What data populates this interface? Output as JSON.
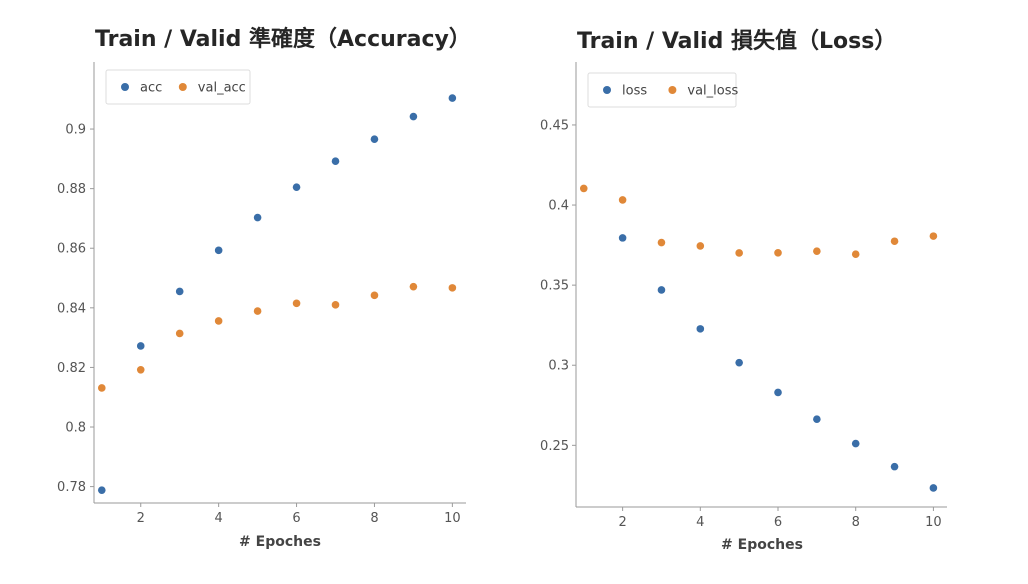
{
  "colors": {
    "series_blue": "#3a6ea8",
    "series_orange": "#e08838",
    "axis": "#9a9a9a",
    "legend_border": "#dddddd"
  },
  "chart_data": [
    {
      "type": "scatter",
      "title": "Train / Valid 準確度（Accuracy）",
      "xlabel": "# Epoches",
      "ylabel": "",
      "xlim": [
        0.8,
        10.35
      ],
      "ylim": [
        0.7745,
        0.9225
      ],
      "xticks": [
        2,
        4,
        6,
        8,
        10
      ],
      "xtick_labels": [
        "2",
        "4",
        "6",
        "8",
        "10"
      ],
      "yticks": [
        0.78,
        0.8,
        0.82,
        0.84,
        0.86,
        0.88,
        0.9
      ],
      "ytick_labels": [
        "0.78",
        "0.8",
        "0.82",
        "0.84",
        "0.86",
        "0.88",
        "0.9"
      ],
      "grid": false,
      "legend": "top-left",
      "x": [
        1,
        2,
        3,
        4,
        5,
        6,
        7,
        8,
        9,
        10
      ],
      "series": [
        {
          "name": "acc",
          "color": "#3a6ea8",
          "values": [
            0.7788,
            0.8272,
            0.8455,
            0.8593,
            0.8703,
            0.8805,
            0.8892,
            0.8966,
            0.9042,
            0.9104
          ]
        },
        {
          "name": "val_acc",
          "color": "#e08838",
          "values": [
            0.8131,
            0.8192,
            0.8314,
            0.8356,
            0.8389,
            0.8415,
            0.841,
            0.8442,
            0.8471,
            0.8467
          ]
        }
      ]
    },
    {
      "type": "scatter",
      "title": "Train / Valid 損失值（Loss）",
      "xlabel": "# Epoches",
      "ylabel": "",
      "xlim": [
        0.8,
        10.35
      ],
      "ylim": [
        0.2115,
        0.4893
      ],
      "xticks": [
        2,
        4,
        6,
        8,
        10
      ],
      "xtick_labels": [
        "2",
        "4",
        "6",
        "8",
        "10"
      ],
      "yticks": [
        0.25,
        0.3,
        0.35,
        0.4,
        0.45
      ],
      "ytick_labels": [
        "0.25",
        "0.3",
        "0.35",
        "0.4",
        "0.45"
      ],
      "grid": false,
      "legend": "top-left",
      "x": [
        1,
        2,
        3,
        4,
        5,
        6,
        7,
        8,
        9,
        10
      ],
      "series": [
        {
          "name": "loss",
          "color": "#3a6ea8",
          "values": [
            null,
            0.3795,
            0.347,
            0.3227,
            0.3016,
            0.283,
            0.2663,
            0.2511,
            0.2367,
            0.2234
          ]
        },
        {
          "name": "val_loss",
          "color": "#e08838",
          "values": [
            0.4104,
            0.4032,
            0.3766,
            0.3745,
            0.3701,
            0.3702,
            0.3712,
            0.3693,
            0.3774,
            0.3806
          ]
        }
      ]
    }
  ]
}
